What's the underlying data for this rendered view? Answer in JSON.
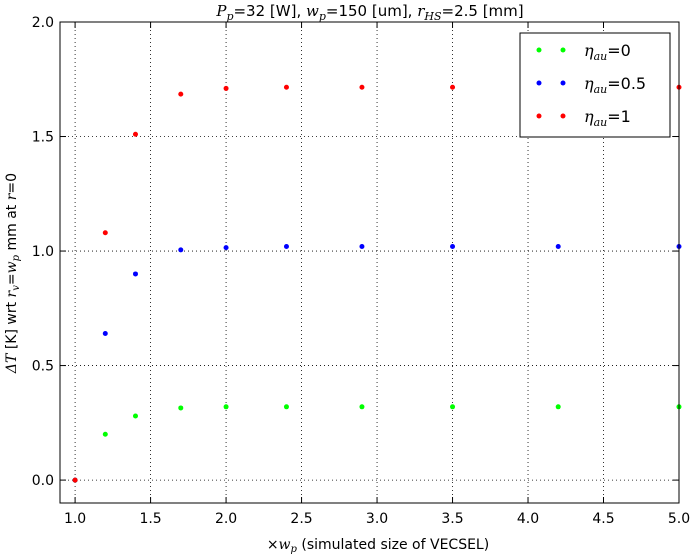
{
  "chart_data": {
    "type": "scatter",
    "title": "P_p =32 [W], w_p =150 [um], r_HS=2.5 [mm]",
    "title_parts": {
      "p_sym": "P",
      "p_sub": "p",
      "p_val": "=32 [W], ",
      "w_sym": "w",
      "w_sub": "p",
      "w_val": "=150 [um], ",
      "r_sym": "r",
      "r_sub": "HS",
      "r_val": "=2.5 [mm]"
    },
    "xlabel": "×w_p (simulated size of VECSEL)",
    "xlabel_parts": {
      "prefix": "×",
      "sym": "w",
      "sub": "p",
      "rest": " (simulated size of VECSEL)"
    },
    "ylabel": "ΔT [K] wrt r_v = w_p mm at r = 0",
    "ylabel_parts": {
      "delta_t": "ΔT",
      "unit": " [K] wrt ",
      "r_sym": "r",
      "r_sub": "v",
      "eq": "=",
      "w_sym": "w",
      "w_sub": "p",
      "mm_at": " mm at ",
      "r2": "r",
      "eq2": "=0"
    },
    "xlim": [
      0.9,
      5.0
    ],
    "ylim": [
      -0.1,
      2.0
    ],
    "xticks": [
      "1.0",
      "1.5",
      "2.0",
      "2.5",
      "3.0",
      "3.5",
      "4.0",
      "4.5",
      "5.0"
    ],
    "xtick_values": [
      1.0,
      1.5,
      2.0,
      2.5,
      3.0,
      3.5,
      4.0,
      4.5,
      5.0
    ],
    "yticks": [
      "0.0",
      "0.5",
      "1.0",
      "1.5",
      "2.0"
    ],
    "ytick_values": [
      0.0,
      0.5,
      1.0,
      1.5,
      2.0
    ],
    "grid": true,
    "legend_position": "top-right",
    "series": [
      {
        "name": "η_au=0",
        "label_sym": "η",
        "label_sub": "au",
        "label_val": "=0",
        "color": "#00ff00",
        "x": [
          1.0,
          1.2,
          1.4,
          1.7,
          2.0,
          2.4,
          2.9,
          3.5,
          4.2,
          5.0
        ],
        "y": [
          0.0,
          0.2,
          0.28,
          0.315,
          0.32,
          0.32,
          0.32,
          0.32,
          0.32,
          0.32
        ]
      },
      {
        "name": "η_au=0.5",
        "label_sym": "η",
        "label_sub": "au",
        "label_val": "=0.5",
        "color": "#0000ff",
        "x": [
          1.0,
          1.2,
          1.4,
          1.7,
          2.0,
          2.4,
          2.9,
          3.5,
          4.2,
          5.0
        ],
        "y": [
          0.0,
          0.64,
          0.9,
          1.005,
          1.015,
          1.02,
          1.02,
          1.02,
          1.02,
          1.02
        ]
      },
      {
        "name": "η_au=1",
        "label_sym": "η",
        "label_sub": "au",
        "label_val": "=1",
        "color": "#ff0000",
        "x": [
          1.0,
          1.2,
          1.4,
          1.7,
          2.0,
          2.4,
          2.9,
          3.5,
          4.2,
          5.0
        ],
        "y": [
          0.0,
          1.08,
          1.51,
          1.685,
          1.71,
          1.715,
          1.715,
          1.715,
          1.715,
          1.715
        ]
      }
    ]
  }
}
